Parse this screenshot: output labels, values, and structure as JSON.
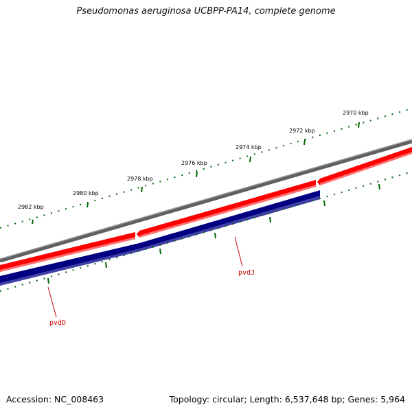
{
  "title": "Pseudomonas aeruginosa UCBPP-PA14, complete genome",
  "footer": {
    "accession": "Accession: NC_008463",
    "summary": "Topology: circular; Length: 6,537,648 bp; Genes: 5,964"
  },
  "ticks": {
    "labels": [
      "2970 kbp",
      "2972 kbp",
      "2974 kbp",
      "2976 kbp",
      "2978 kbp",
      "2980 kbp",
      "2982 kbp"
    ]
  },
  "genes": [
    {
      "name": "pvdJ",
      "strand": "forward-lower",
      "color": "#000080"
    },
    {
      "name": "pvdD",
      "strand": "forward-lower",
      "color": "#000080"
    }
  ],
  "colors": {
    "backbone": "#808080",
    "forward_features": "#ff0000",
    "reverse_features": "#000080",
    "ticks": "#006400",
    "gene_labels": "#cc0000"
  }
}
